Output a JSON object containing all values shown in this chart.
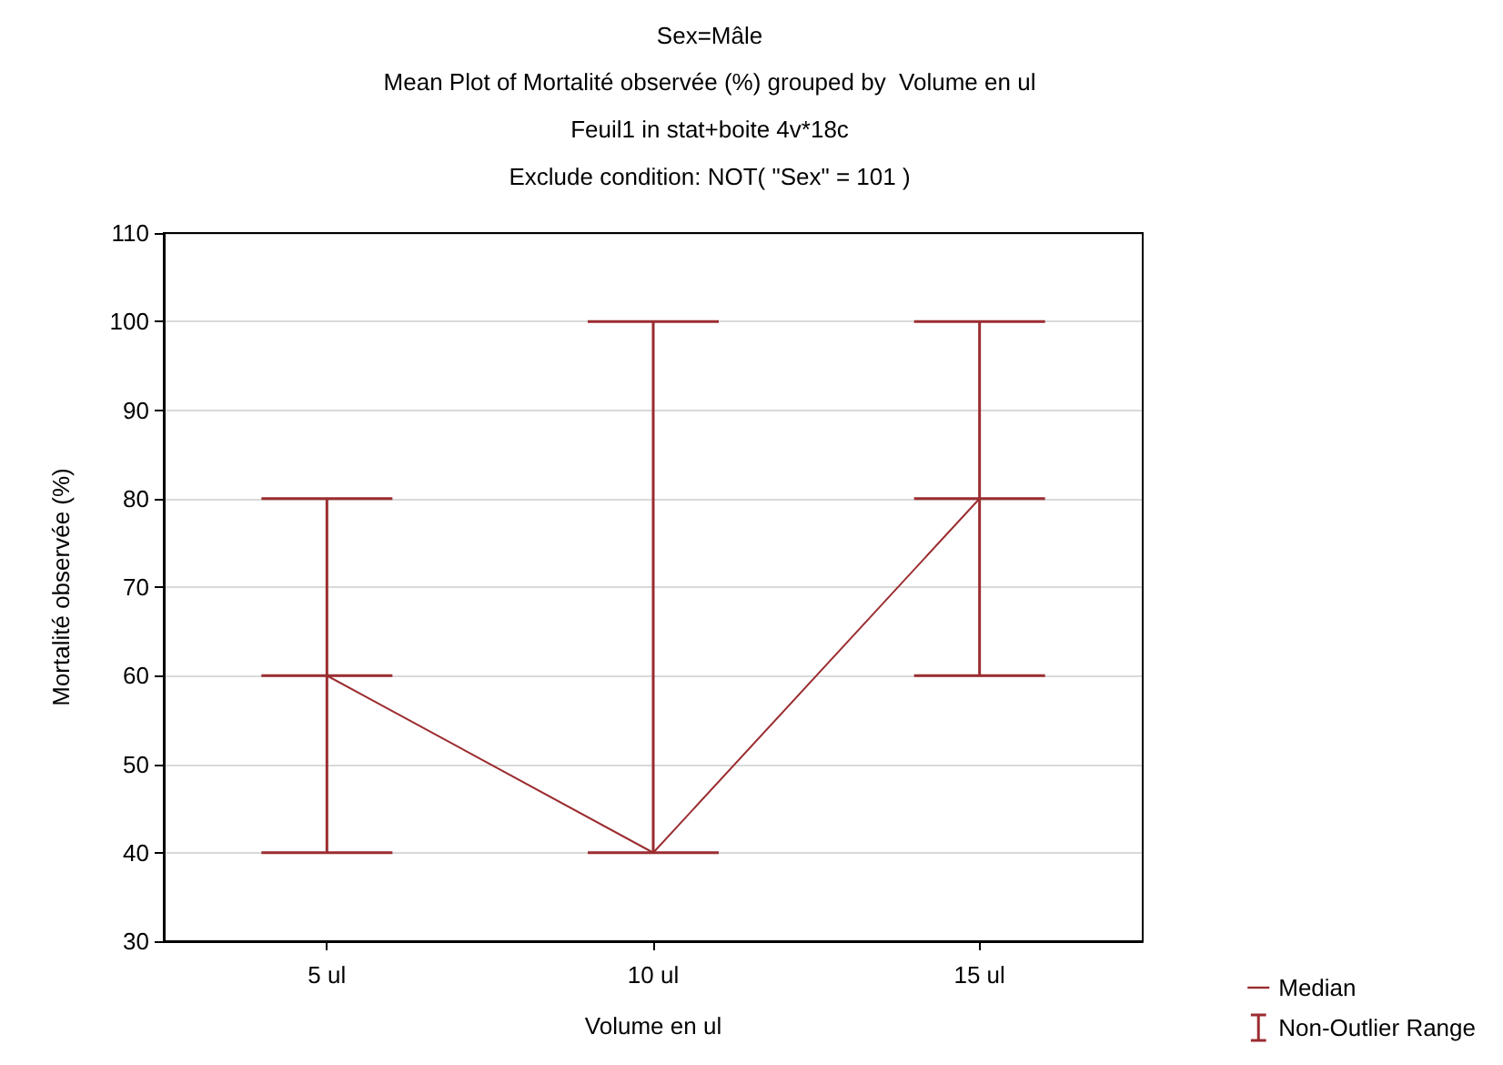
{
  "chart_data": {
    "type": "line",
    "title": "Sex=Mâle",
    "subtitle": "Mean Plot of Mortalité observée (%) grouped by  Volume en ul\nFeuil1 in stat+boite 4v*18c\nExclude condition: NOT( \"Sex\" = 101 )",
    "xlabel": "Volume en ul",
    "ylabel": "Mortalité observée (%)",
    "categories": [
      "5 ul",
      "10 ul",
      "15 ul"
    ],
    "series": [
      {
        "name": "Median",
        "color": "#9b2d30",
        "values": [
          60,
          40,
          80
        ]
      },
      {
        "type": "box",
        "name": "Non-Outlier Range",
        "color": "#9b2d30",
        "boxes": [
          {
            "low": 40,
            "q1": 60,
            "median": 60,
            "q3": 60,
            "high": 80
          },
          {
            "low": 40,
            "q1": 40,
            "median": 40,
            "q3": 40,
            "high": 100
          },
          {
            "low": 60,
            "q1": 80,
            "median": 80,
            "q3": 80,
            "high": 100
          }
        ]
      }
    ],
    "ylim": [
      30,
      110
    ],
    "yticks": [
      30,
      40,
      50,
      60,
      70,
      80,
      90,
      100,
      110
    ],
    "grid": "y",
    "legend": "bottom right"
  }
}
